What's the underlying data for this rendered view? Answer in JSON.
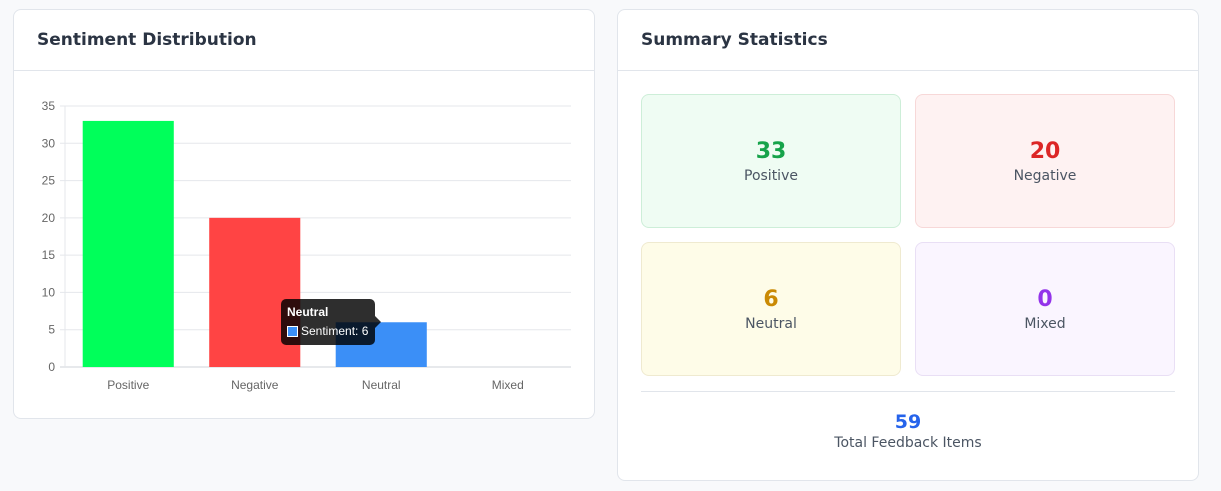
{
  "chart_card": {
    "title": "Sentiment Distribution"
  },
  "summary_card": {
    "title": "Summary Statistics",
    "stats": [
      {
        "value": "33",
        "label": "Positive",
        "color": "#16a34a",
        "bg": "#effcf3",
        "border": "#cdeed8"
      },
      {
        "value": "20",
        "label": "Negative",
        "color": "#dc2626",
        "bg": "#fef2f2",
        "border": "#f7d8d8"
      },
      {
        "value": "6",
        "label": "Neutral",
        "color": "#ca8a04",
        "bg": "#fefce8",
        "border": "#efead0"
      },
      {
        "value": "0",
        "label": "Mixed",
        "color": "#9333ea",
        "bg": "#faf5ff",
        "border": "#e9dff5"
      }
    ],
    "total": {
      "value": "59",
      "label": "Total Feedback Items"
    }
  },
  "tooltip": {
    "title": "Neutral",
    "text": "Sentiment: 6",
    "swatch_color": "#3b8ff7"
  },
  "chart_data": {
    "type": "bar",
    "categories": [
      "Positive",
      "Negative",
      "Neutral",
      "Mixed"
    ],
    "series": [
      {
        "name": "Sentiment",
        "values": [
          33,
          20,
          6,
          0
        ],
        "colors": [
          "#00ff5a",
          "#ff4444",
          "#3b8ff7",
          "#a855f7"
        ]
      }
    ],
    "ylim": [
      0,
      35
    ],
    "yticks": [
      0,
      5,
      10,
      15,
      20,
      25,
      30,
      35
    ],
    "grid": true,
    "legend": "none",
    "title": "",
    "xlabel": "",
    "ylabel": ""
  }
}
